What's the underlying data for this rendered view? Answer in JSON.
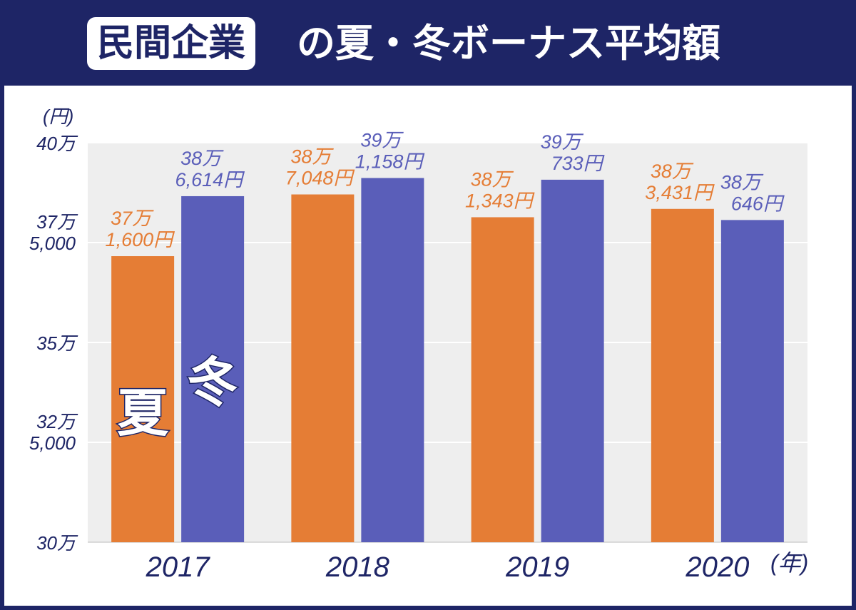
{
  "header": {
    "badge": "民間企業",
    "title_rest": "の夏・冬ボーナス平均額"
  },
  "chart_data": {
    "type": "bar",
    "title": "民間企業の夏・冬ボーナス平均額",
    "ylabel": "(円)",
    "xlabel": "(年)",
    "ylim": [
      300000,
      400000
    ],
    "yticks": [
      {
        "value": 300000,
        "lines": [
          "30万"
        ]
      },
      {
        "value": 325000,
        "lines": [
          "32万",
          "5,000"
        ]
      },
      {
        "value": 350000,
        "lines": [
          "35万"
        ]
      },
      {
        "value": 375000,
        "lines": [
          "37万",
          "5,000"
        ]
      },
      {
        "value": 400000,
        "lines": [
          "40万"
        ]
      }
    ],
    "grid": true,
    "categories": [
      "2017",
      "2018",
      "2019",
      "2020"
    ],
    "series": [
      {
        "name": "夏",
        "color": "#e57d35",
        "values": [
          371600,
          387048,
          381343,
          383431
        ],
        "labels": [
          [
            "37万",
            "1,600円"
          ],
          [
            "38万",
            "7,048円"
          ],
          [
            "38万",
            "1,343円"
          ],
          [
            "38万",
            "3,431円"
          ]
        ]
      },
      {
        "name": "冬",
        "color": "#5a5eb9",
        "values": [
          386614,
          391158,
          390733,
          380646
        ],
        "labels": [
          [
            "38万",
            "6,614円"
          ],
          [
            "39万",
            "1,158円"
          ],
          [
            "39万",
            "733円"
          ],
          [
            "38万",
            "646円"
          ]
        ]
      }
    ]
  },
  "colors": {
    "navy": "#1e2566",
    "summer": "#e57d35",
    "winter": "#5a5eb9",
    "plot_bg": "#eeeeee"
  }
}
